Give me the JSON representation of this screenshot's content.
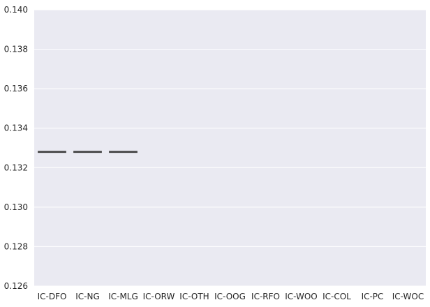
{
  "colors": {
    "plot_background": "#EAEAF2",
    "gridline": "#FFFFFF",
    "box_line": "#4C4C4C",
    "tick_text": "#262626"
  },
  "chart_data": {
    "type": "box",
    "title": "",
    "xlabel": "",
    "ylabel": "",
    "grid": true,
    "categories": [
      "IC-DFO",
      "IC-NG",
      "IC-MLG",
      "IC-ORW",
      "IC-OTH",
      "IC-OOG",
      "IC-RFO",
      "IC-WOO",
      "IC-COL",
      "IC-PC",
      "IC-WOC"
    ],
    "values": [
      0.1328,
      0.1328,
      0.1328,
      null,
      null,
      null,
      null,
      null,
      null,
      null,
      null
    ],
    "ylim": [
      0.126,
      0.14
    ],
    "yticks": [
      "0.126",
      "0.128",
      "0.130",
      "0.132",
      "0.134",
      "0.136",
      "0.138",
      "0.140"
    ]
  }
}
